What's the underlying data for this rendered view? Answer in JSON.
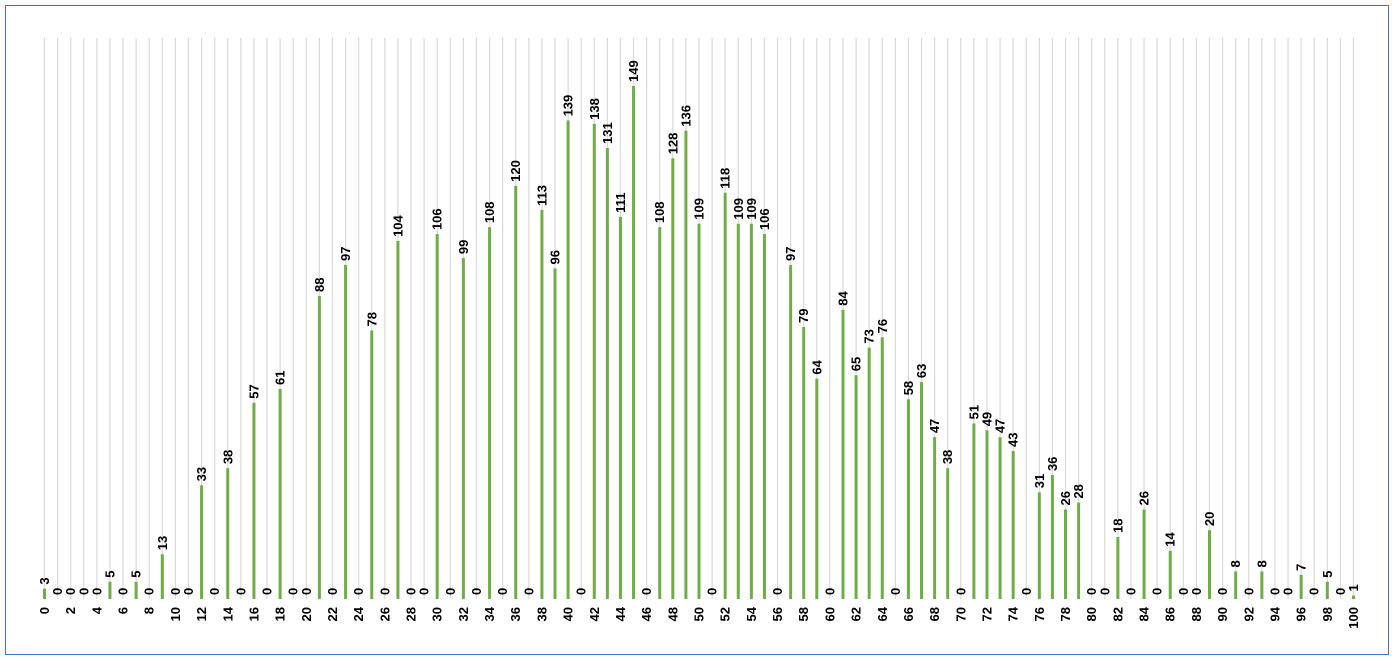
{
  "chart_data": {
    "type": "bar",
    "title": "",
    "xlabel": "",
    "ylabel": "",
    "ylim": [
      0,
      155
    ],
    "grid": "vertical",
    "legend": "none",
    "bar_color": "#70AD47",
    "grid_color": "#D9D9D9",
    "border_color": "#4472C4",
    "tick_labels_every": 2,
    "categories": [
      "0",
      "1",
      "2",
      "3",
      "4",
      "5",
      "6",
      "7",
      "8",
      "9",
      "10",
      "11",
      "12",
      "13",
      "14",
      "15",
      "16",
      "17",
      "18",
      "19",
      "20",
      "21",
      "22",
      "23",
      "24",
      "25",
      "26",
      "27",
      "28",
      "29",
      "30",
      "31",
      "32",
      "33",
      "34",
      "35",
      "36",
      "37",
      "38",
      "39",
      "40",
      "41",
      "42",
      "43",
      "44",
      "45",
      "46",
      "47",
      "48",
      "49",
      "50",
      "51",
      "52",
      "53",
      "54",
      "55",
      "56",
      "57",
      "58",
      "59",
      "60",
      "61",
      "62",
      "63",
      "64",
      "65",
      "66",
      "67",
      "68",
      "69",
      "70",
      "71",
      "72",
      "73",
      "74",
      "75",
      "76",
      "77",
      "78",
      "79",
      "80",
      "81",
      "82",
      "83",
      "84",
      "85",
      "86",
      "87",
      "88",
      "89",
      "90",
      "91",
      "92",
      "93",
      "94",
      "95",
      "96",
      "97",
      "98",
      "99",
      "100"
    ],
    "values": [
      3,
      0,
      0,
      0,
      0,
      5,
      0,
      5,
      0,
      13,
      0,
      0,
      33,
      0,
      38,
      0,
      57,
      0,
      61,
      0,
      0,
      88,
      0,
      97,
      0,
      78,
      0,
      104,
      0,
      0,
      106,
      0,
      99,
      0,
      108,
      0,
      120,
      0,
      113,
      96,
      139,
      0,
      138,
      131,
      111,
      149,
      0,
      108,
      128,
      136,
      109,
      0,
      118,
      109,
      109,
      106,
      0,
      97,
      79,
      64,
      0,
      84,
      65,
      73,
      76,
      0,
      58,
      63,
      47,
      38,
      0,
      51,
      49,
      47,
      43,
      0,
      31,
      36,
      26,
      28,
      0,
      0,
      18,
      0,
      26,
      0,
      14,
      0,
      0,
      20,
      0,
      8,
      0,
      8,
      0,
      0,
      7,
      0,
      5,
      0,
      1
    ]
  }
}
